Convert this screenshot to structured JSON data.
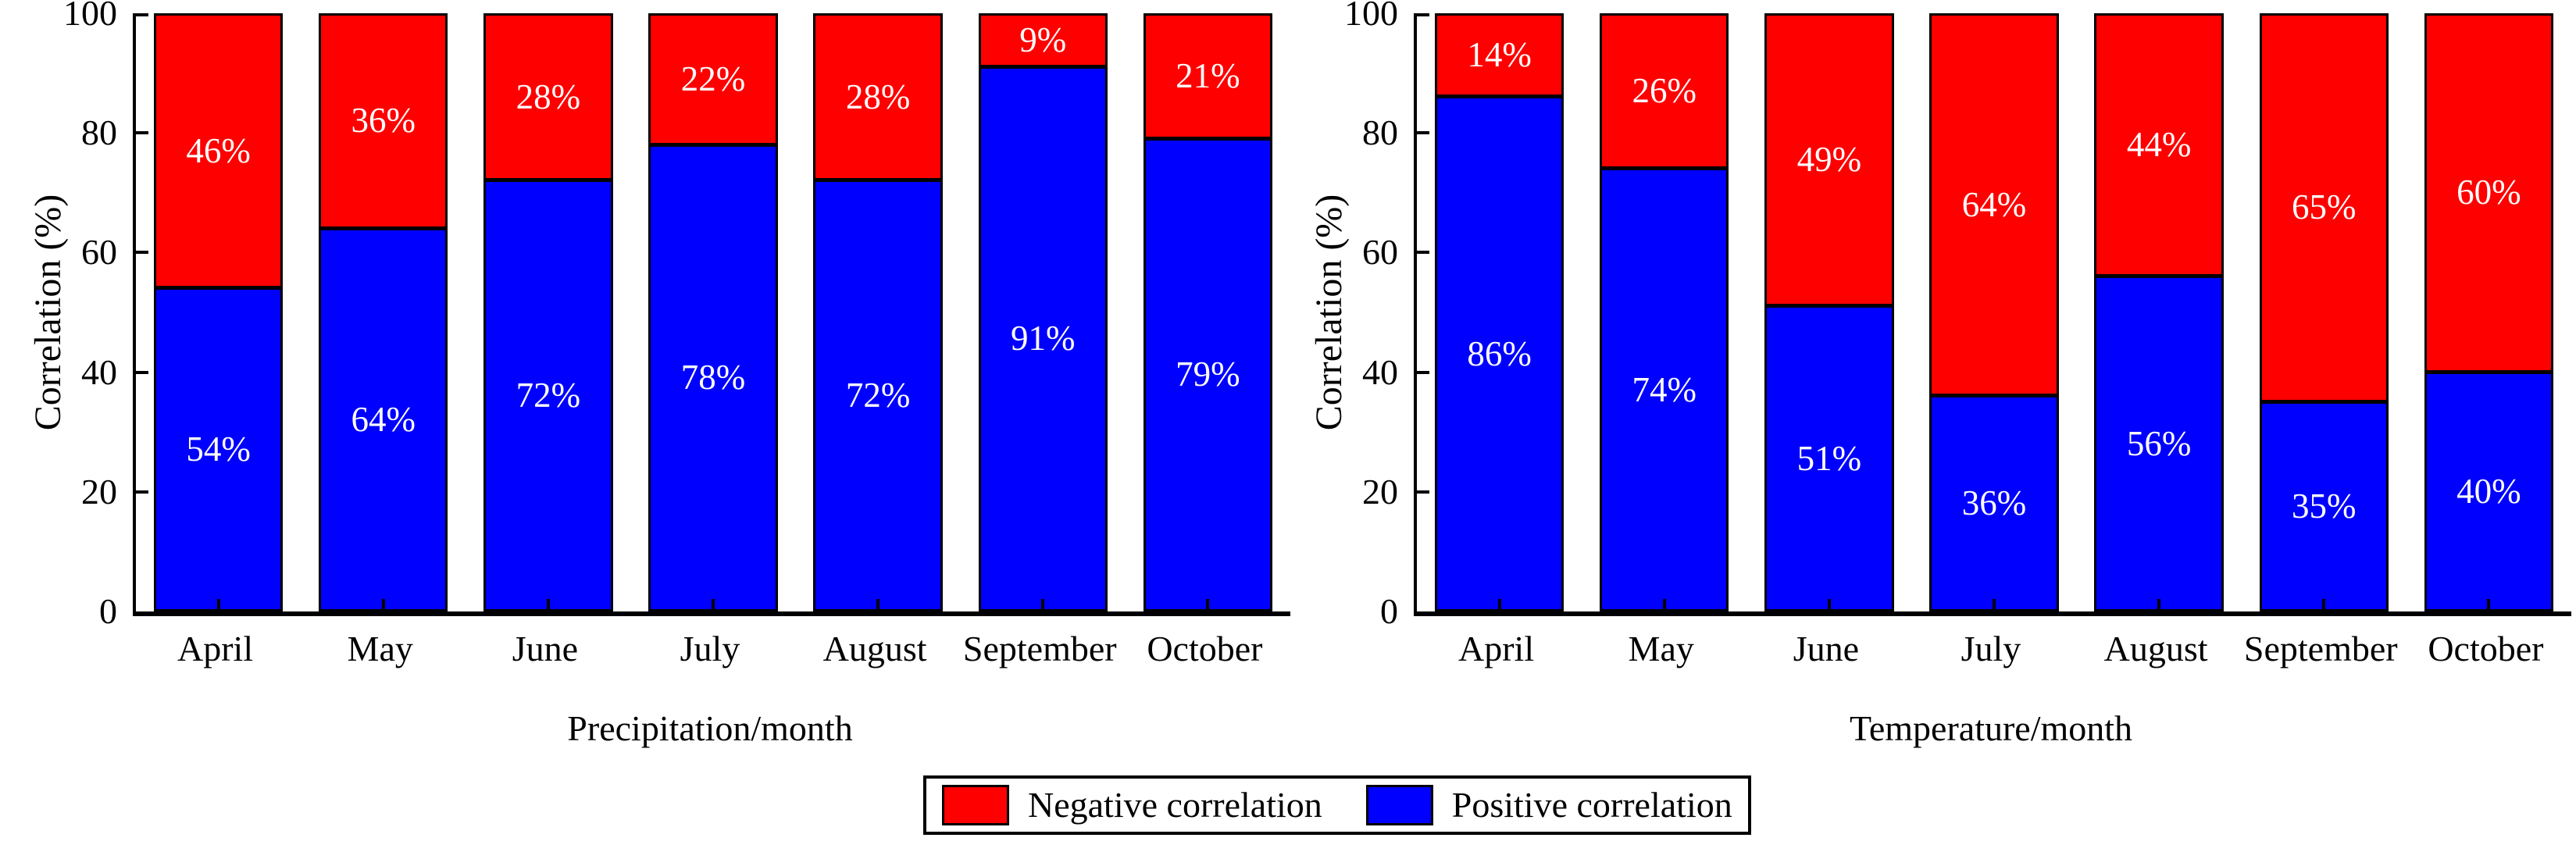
{
  "figure": {
    "background": "#ffffff",
    "axis_color": "#000000",
    "label_text_color": "#ffffff",
    "legend": {
      "position": "bottom-center",
      "items": [
        {
          "label": "Negative correlation",
          "color": "#ff0000"
        },
        {
          "label": "Positive correlation",
          "color": "#0000ff"
        }
      ]
    }
  },
  "chart_data": [
    {
      "type": "bar",
      "stacked": true,
      "percent_stacked": true,
      "xlabel": "Precipitation/month",
      "ylabel": "Correlation (%)",
      "ylim": [
        0,
        100
      ],
      "yticks": [
        0,
        20,
        40,
        60,
        80,
        100
      ],
      "grid": false,
      "categories": [
        "April",
        "May",
        "June",
        "July",
        "August",
        "September",
        "October"
      ],
      "series": [
        {
          "name": "Positive correlation",
          "color": "#0000ff",
          "values": [
            54,
            64,
            72,
            78,
            72,
            91,
            79
          ]
        },
        {
          "name": "Negative correlation",
          "color": "#ff0000",
          "values": [
            46,
            36,
            28,
            22,
            28,
            9,
            21
          ]
        }
      ],
      "value_suffix": "%"
    },
    {
      "type": "bar",
      "stacked": true,
      "percent_stacked": true,
      "xlabel": "Temperature/month",
      "ylabel": "Correlation (%)",
      "ylim": [
        0,
        100
      ],
      "yticks": [
        0,
        20,
        40,
        60,
        80,
        100
      ],
      "grid": false,
      "categories": [
        "April",
        "May",
        "June",
        "July",
        "August",
        "September",
        "October"
      ],
      "series": [
        {
          "name": "Positive correlation",
          "color": "#0000ff",
          "values": [
            86,
            74,
            51,
            36,
            56,
            35,
            40
          ]
        },
        {
          "name": "Negative correlation",
          "color": "#ff0000",
          "values": [
            14,
            26,
            49,
            64,
            44,
            65,
            60
          ]
        }
      ],
      "value_suffix": "%"
    }
  ]
}
